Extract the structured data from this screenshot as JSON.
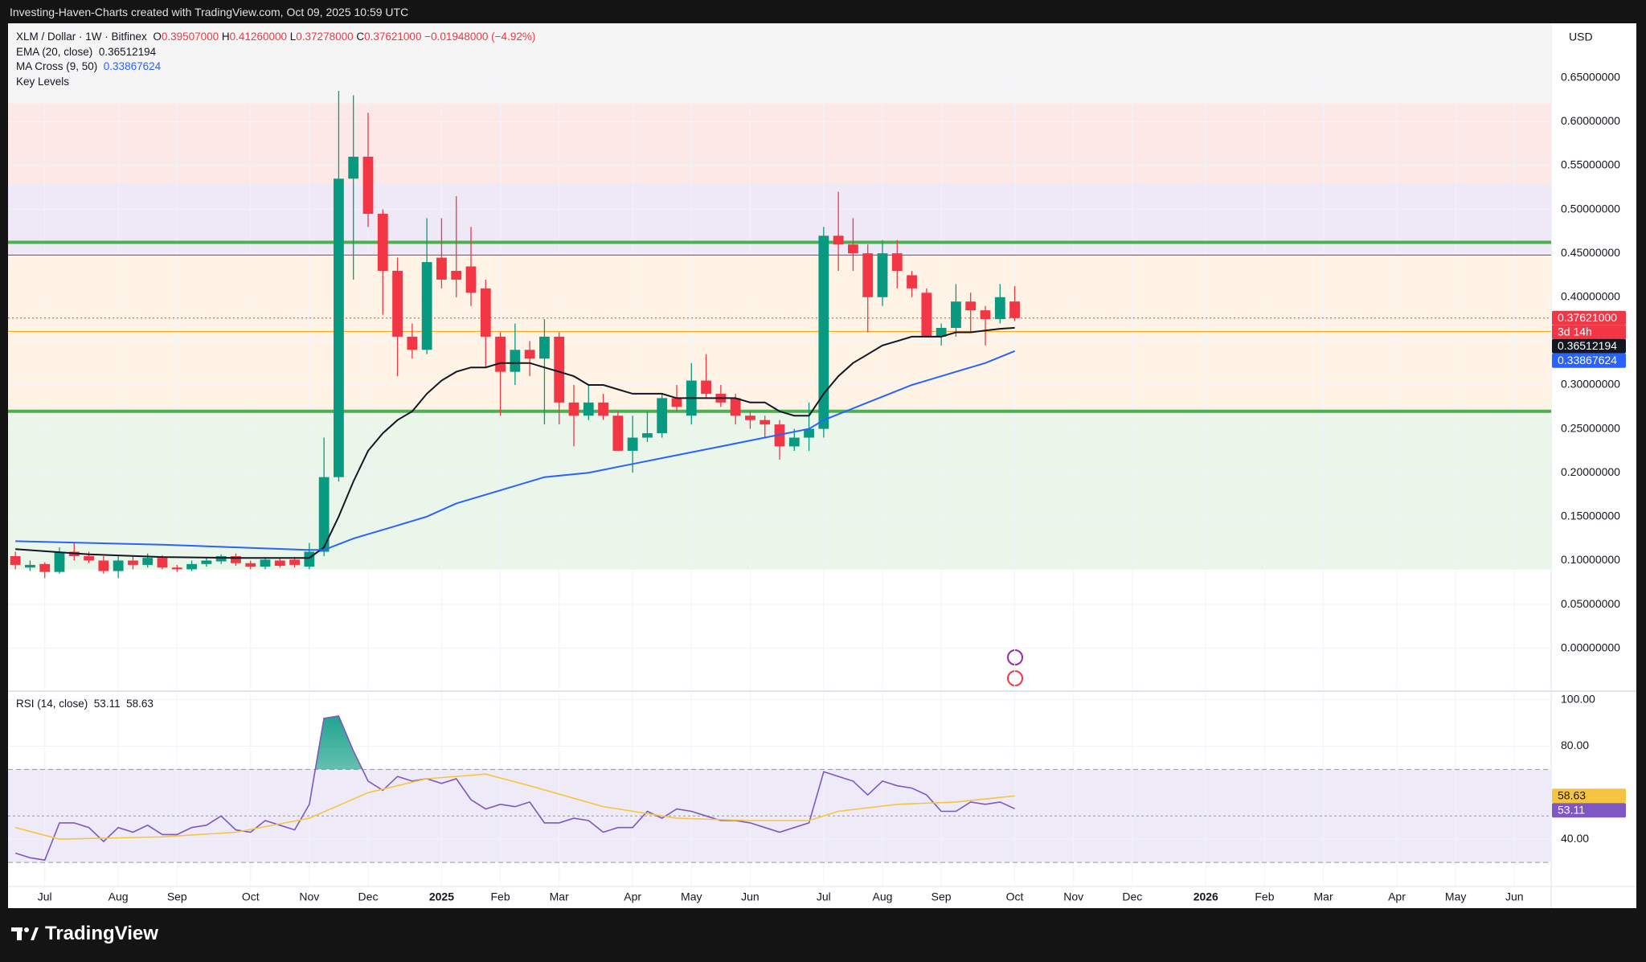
{
  "header": {
    "attribution": "Investing-Haven-Charts created with TradingView.com, Oct 09, 2025 10:59 UTC"
  },
  "footer": {
    "brand": "TradingView"
  },
  "chart_data": [
    {
      "type": "candlestick",
      "symbol": "XLM / Dollar · 1W · Bitfinex",
      "ohlc_legend": [
        {
          "key": "O",
          "label": "0.39507000"
        },
        {
          "key": "H",
          "label": "0.41260000"
        },
        {
          "key": "L",
          "label": "0.37278000"
        },
        {
          "key": "C",
          "label": "0.37621000"
        }
      ],
      "change_label": "−0.01948000 (−4.92%)",
      "indicator_labels": [
        "Key Levels"
      ],
      "currency": "USD",
      "up_color": "#089981",
      "down_color": "#f23645",
      "x": [
        0,
        1,
        2,
        3,
        4,
        5,
        6,
        7,
        8,
        9,
        10,
        11,
        12,
        13,
        14,
        15,
        16,
        17,
        18,
        19,
        20,
        21,
        22,
        23,
        24,
        25,
        26,
        27,
        28,
        29,
        30,
        31,
        32,
        33,
        34,
        35,
        36,
        37,
        38,
        39,
        40,
        41,
        42,
        43,
        44,
        45,
        46,
        47,
        48,
        49,
        50,
        51,
        52,
        53,
        54,
        55,
        56,
        57,
        58,
        59,
        60,
        61,
        62,
        63,
        64,
        65,
        66,
        67,
        68
      ],
      "open": [
        0.105,
        0.092,
        0.096,
        0.087,
        0.11,
        0.105,
        0.1,
        0.088,
        0.1,
        0.095,
        0.103,
        0.092,
        0.09,
        0.096,
        0.099,
        0.105,
        0.097,
        0.093,
        0.1,
        0.101,
        0.093,
        0.11,
        0.195,
        0.535,
        0.56,
        0.495,
        0.43,
        0.355,
        0.34,
        0.445,
        0.43,
        0.435,
        0.41,
        0.355,
        0.315,
        0.34,
        0.33,
        0.355,
        0.28,
        0.265,
        0.28,
        0.265,
        0.225,
        0.24,
        0.245,
        0.285,
        0.265,
        0.305,
        0.29,
        0.285,
        0.265,
        0.26,
        0.255,
        0.23,
        0.24,
        0.25,
        0.47,
        0.46,
        0.45,
        0.4,
        0.45,
        0.425,
        0.405,
        0.355,
        0.365,
        0.395,
        0.385,
        0.375,
        0.39507
      ],
      "high": [
        0.11,
        0.1,
        0.098,
        0.115,
        0.12,
        0.11,
        0.105,
        0.105,
        0.105,
        0.108,
        0.106,
        0.095,
        0.1,
        0.103,
        0.107,
        0.108,
        0.1,
        0.104,
        0.103,
        0.104,
        0.12,
        0.24,
        0.635,
        0.63,
        0.61,
        0.5,
        0.445,
        0.37,
        0.49,
        0.49,
        0.515,
        0.48,
        0.42,
        0.36,
        0.37,
        0.35,
        0.375,
        0.36,
        0.3,
        0.3,
        0.29,
        0.27,
        0.265,
        0.27,
        0.29,
        0.3,
        0.325,
        0.335,
        0.3,
        0.29,
        0.27,
        0.265,
        0.26,
        0.25,
        0.28,
        0.48,
        0.52,
        0.49,
        0.46,
        0.465,
        0.465,
        0.43,
        0.41,
        0.37,
        0.415,
        0.405,
        0.39,
        0.415,
        0.4126
      ],
      "low": [
        0.09,
        0.088,
        0.08,
        0.085,
        0.1,
        0.097,
        0.085,
        0.08,
        0.09,
        0.092,
        0.09,
        0.087,
        0.088,
        0.093,
        0.096,
        0.094,
        0.09,
        0.09,
        0.092,
        0.092,
        0.09,
        0.105,
        0.19,
        0.42,
        0.48,
        0.38,
        0.31,
        0.33,
        0.335,
        0.41,
        0.4,
        0.39,
        0.32,
        0.265,
        0.3,
        0.31,
        0.255,
        0.255,
        0.23,
        0.26,
        0.26,
        0.225,
        0.2,
        0.235,
        0.24,
        0.27,
        0.255,
        0.285,
        0.275,
        0.255,
        0.25,
        0.24,
        0.215,
        0.225,
        0.225,
        0.24,
        0.43,
        0.43,
        0.36,
        0.39,
        0.41,
        0.4,
        0.355,
        0.345,
        0.355,
        0.36,
        0.345,
        0.37,
        0.37278
      ],
      "close": [
        0.095,
        0.095,
        0.087,
        0.11,
        0.105,
        0.1,
        0.088,
        0.1,
        0.095,
        0.103,
        0.092,
        0.09,
        0.096,
        0.1,
        0.105,
        0.097,
        0.093,
        0.101,
        0.094,
        0.095,
        0.11,
        0.195,
        0.535,
        0.56,
        0.495,
        0.43,
        0.355,
        0.34,
        0.44,
        0.42,
        0.42,
        0.405,
        0.355,
        0.315,
        0.34,
        0.33,
        0.355,
        0.28,
        0.265,
        0.28,
        0.265,
        0.225,
        0.24,
        0.245,
        0.285,
        0.275,
        0.305,
        0.29,
        0.28,
        0.265,
        0.26,
        0.255,
        0.23,
        0.24,
        0.25,
        0.47,
        0.46,
        0.45,
        0.4,
        0.45,
        0.43,
        0.41,
        0.355,
        0.365,
        0.395,
        0.385,
        0.375,
        0.4,
        0.37621
      ],
      "series": [
        {
          "name": "EMA (20, close)",
          "color": "#131722",
          "x": [
            0,
            5,
            10,
            15,
            20,
            21,
            22,
            23,
            24,
            25,
            26,
            27,
            28,
            29,
            30,
            31,
            32,
            33,
            34,
            35,
            36,
            37,
            38,
            39,
            40,
            41,
            42,
            43,
            44,
            45,
            46,
            47,
            48,
            49,
            50,
            51,
            52,
            53,
            54,
            55,
            56,
            57,
            58,
            59,
            60,
            61,
            62,
            63,
            64,
            65,
            66,
            67,
            68
          ],
          "values": [
            0.113,
            0.107,
            0.104,
            0.103,
            0.103,
            0.115,
            0.15,
            0.19,
            0.225,
            0.245,
            0.26,
            0.27,
            0.29,
            0.305,
            0.315,
            0.32,
            0.32,
            0.325,
            0.325,
            0.325,
            0.32,
            0.315,
            0.31,
            0.3,
            0.3,
            0.295,
            0.29,
            0.29,
            0.29,
            0.285,
            0.285,
            0.285,
            0.285,
            0.285,
            0.28,
            0.28,
            0.27,
            0.265,
            0.265,
            0.29,
            0.31,
            0.325,
            0.335,
            0.345,
            0.35,
            0.355,
            0.355,
            0.355,
            0.36,
            0.36,
            0.362,
            0.364,
            0.36512194
          ]
        },
        {
          "name": "MA Cross (9, 50)",
          "color": "#2962ff",
          "x": [
            0,
            10,
            20,
            21,
            23,
            26,
            28,
            30,
            33,
            36,
            39,
            42,
            45,
            48,
            51,
            54,
            55,
            58,
            61,
            64,
            66,
            68
          ],
          "values": [
            0.122,
            0.118,
            0.112,
            0.112,
            0.125,
            0.14,
            0.15,
            0.165,
            0.18,
            0.195,
            0.2,
            0.21,
            0.22,
            0.23,
            0.24,
            0.25,
            0.26,
            0.28,
            0.3,
            0.315,
            0.325,
            0.33867624
          ]
        }
      ],
      "zones": [
        {
          "from": 0.621,
          "to": 0.712,
          "color": "#f5f5f5"
        },
        {
          "from": 0.528,
          "to": 0.621,
          "color": "#fde8e8"
        },
        {
          "from": 0.448,
          "to": 0.528,
          "color": "#efe8f7"
        },
        {
          "from": 0.27,
          "to": 0.448,
          "color": "#fff3e6"
        },
        {
          "from": 0.0896,
          "to": 0.27,
          "color": "#eaf6ea"
        }
      ],
      "levels": [
        {
          "value": 0.4625,
          "color": "#4caf50",
          "width": 4
        },
        {
          "value": 0.448,
          "color": "#9c27b0",
          "width": 1
        },
        {
          "value": 0.361,
          "color": "#ff9800",
          "width": 1
        },
        {
          "value": 0.27,
          "color": "#4caf50",
          "width": 4
        }
      ],
      "badges": [
        {
          "value": 0.37621,
          "label": "0.37621000",
          "note": "3d 14h",
          "color": "#f23645"
        },
        {
          "value": 0.36512194,
          "label": "0.36512194",
          "color": "#131722"
        },
        {
          "value": 0.33867624,
          "label": "0.33867624",
          "color": "#2962ff"
        }
      ],
      "xlim": [
        -0.5,
        104.5
      ],
      "xticks": [
        {
          "value": 2,
          "label": "Jul"
        },
        {
          "value": 7,
          "label": "Aug"
        },
        {
          "value": 11,
          "label": "Sep"
        },
        {
          "value": 16,
          "label": "Oct"
        },
        {
          "value": 20,
          "label": "Nov"
        },
        {
          "value": 24,
          "label": "Dec"
        },
        {
          "value": 29,
          "label": "2025"
        },
        {
          "value": 33,
          "label": "Feb"
        },
        {
          "value": 37,
          "label": "Mar"
        },
        {
          "value": 42,
          "label": "Apr"
        },
        {
          "value": 46,
          "label": "May"
        },
        {
          "value": 50,
          "label": "Jun"
        },
        {
          "value": 55,
          "label": "Jul"
        },
        {
          "value": 59,
          "label": "Aug"
        },
        {
          "value": 63,
          "label": "Sep"
        },
        {
          "value": 68,
          "label": "Oct"
        },
        {
          "value": 72,
          "label": "Nov"
        },
        {
          "value": 76,
          "label": "Dec"
        },
        {
          "value": 81,
          "label": "2026"
        },
        {
          "value": 85,
          "label": "Feb"
        },
        {
          "value": 89,
          "label": "Mar"
        },
        {
          "value": 94,
          "label": "Apr"
        },
        {
          "value": 98,
          "label": "May"
        },
        {
          "value": 102,
          "label": "Jun"
        }
      ],
      "ylim": [
        -0.047,
        0.712
      ],
      "yticks": [
        {
          "value": 0,
          "label": "0.00000000"
        },
        {
          "value": 0.05,
          "label": "0.05000000"
        },
        {
          "value": 0.1,
          "label": "0.10000000"
        },
        {
          "value": 0.15,
          "label": "0.15000000"
        },
        {
          "value": 0.2,
          "label": "0.20000000"
        },
        {
          "value": 0.25,
          "label": "0.25000000"
        },
        {
          "value": 0.3,
          "label": "0.30000000"
        },
        {
          "value": 0.35,
          "label": "0.35000000"
        },
        {
          "value": 0.4,
          "label": "0.40000000"
        },
        {
          "value": 0.45,
          "label": "0.45000000"
        },
        {
          "value": 0.5,
          "label": "0.50000000"
        },
        {
          "value": 0.55,
          "label": "0.55000000"
        },
        {
          "value": 0.6,
          "label": "0.60000000"
        },
        {
          "value": 0.65,
          "label": "0.65000000"
        }
      ],
      "grid": true
    },
    {
      "type": "line",
      "title": "RSI (14, close)",
      "x": [
        0,
        1,
        2,
        3,
        4,
        5,
        6,
        7,
        8,
        9,
        10,
        11,
        12,
        13,
        14,
        15,
        16,
        17,
        18,
        19,
        20,
        21,
        22,
        23,
        24,
        25,
        26,
        27,
        28,
        29,
        30,
        31,
        32,
        33,
        34,
        35,
        36,
        37,
        38,
        39,
        40,
        41,
        42,
        43,
        44,
        45,
        46,
        47,
        48,
        49,
        50,
        51,
        52,
        53,
        54,
        55,
        56,
        57,
        58,
        59,
        60,
        61,
        62,
        63,
        64,
        65,
        66,
        67,
        68
      ],
      "series": [
        {
          "color": "#7e57c2",
          "values": [
            34,
            32,
            31,
            47,
            47,
            45,
            39,
            45,
            43,
            46,
            42,
            42,
            45,
            46,
            50,
            44,
            43,
            48,
            46,
            44,
            55,
            92,
            93,
            78,
            65,
            61,
            67,
            65,
            66,
            64,
            66,
            57,
            53,
            55,
            54,
            56,
            47,
            47,
            49,
            48,
            43,
            45,
            45,
            52,
            49,
            53,
            52,
            50,
            48,
            48,
            47,
            45,
            43,
            45,
            47,
            69,
            67,
            65,
            59,
            65,
            63,
            62,
            59,
            52,
            52,
            56,
            55,
            56,
            53.11
          ]
        },
        {
          "color": "#f5c542",
          "x": [
            0,
            3,
            10,
            15,
            20,
            24,
            28,
            32,
            35,
            40,
            45,
            50,
            54,
            56,
            60,
            64,
            68
          ],
          "values": [
            45,
            40,
            41,
            43,
            49,
            60,
            66,
            68,
            63,
            54,
            49,
            48,
            48,
            52,
            55,
            56,
            58.63
          ]
        }
      ],
      "band": {
        "from": 30,
        "to": 70,
        "color": "#efeaf8"
      },
      "levels": [
        {
          "value": 70,
          "dash": "6 4"
        },
        {
          "value": 50,
          "dash": "3 3"
        },
        {
          "value": 30,
          "dash": "6 4"
        }
      ],
      "overbought_color": "#089981",
      "badges": [
        {
          "value": 58.63,
          "label": "58.63",
          "color": "#f5c542",
          "text_color": "#131722"
        },
        {
          "value": 53.11,
          "label": "53.11",
          "color": "#7e57c2"
        }
      ],
      "xlim": [
        -0.5,
        104.5
      ],
      "ylim": [
        20,
        103
      ],
      "yticks": [
        {
          "value": 40,
          "label": "40.00"
        },
        {
          "value": 80,
          "label": "80.00"
        },
        {
          "value": 100,
          "label": "100.00"
        }
      ],
      "grid": true
    }
  ]
}
